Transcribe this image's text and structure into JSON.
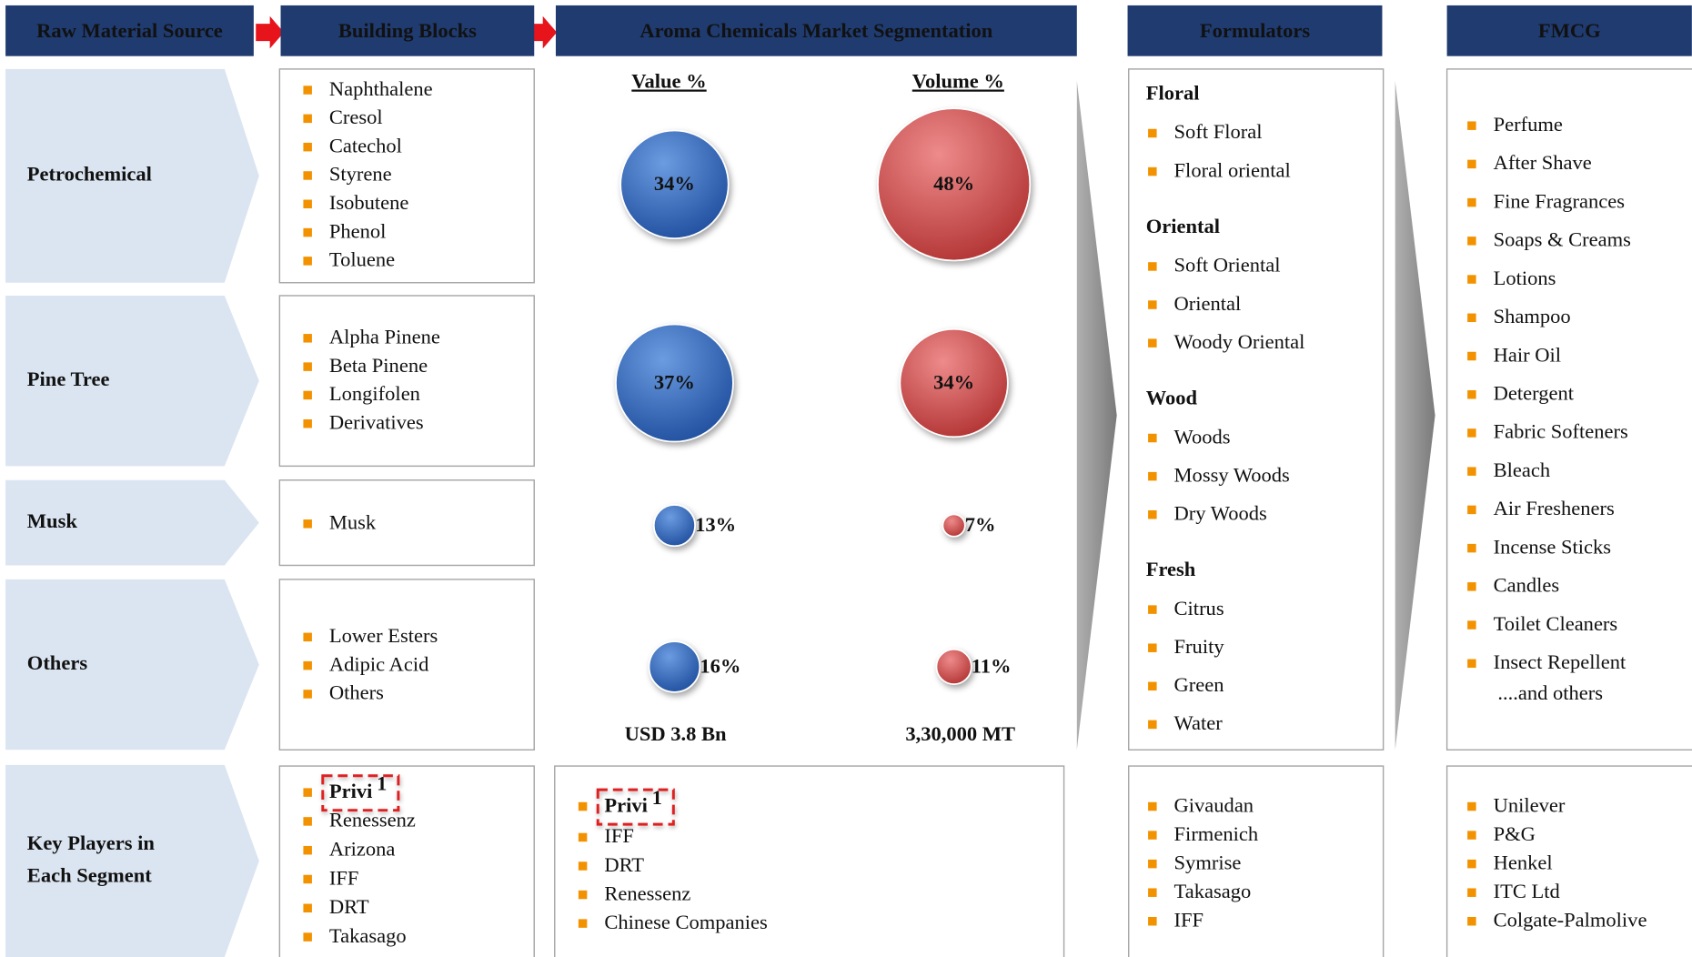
{
  "headers": [
    "Raw Material Source",
    "Building Blocks",
    "Aroma Chemicals Market Segmentation",
    "Formulators",
    "FMCG"
  ],
  "rows": [
    [
      "Petrochemical"
    ],
    [
      "Pine Tree"
    ],
    [
      "Musk"
    ],
    [
      "Others"
    ],
    [
      "Key Players in",
      "Each Segment"
    ]
  ],
  "building_blocks": [
    [
      "Naphthalene",
      "Cresol",
      "Catechol",
      "Styrene",
      "Isobutene",
      "Phenol",
      "Toluene"
    ],
    [
      "Alpha Pinene",
      "Beta Pinene",
      "Longifolen",
      "Derivatives"
    ],
    [
      "Musk"
    ],
    [
      "Lower Esters",
      "Adipic Acid",
      "Others"
    ]
  ],
  "segmentation": {
    "value_title": "Value %",
    "volume_title": "Volume %",
    "value": [
      {
        "value": 34,
        "label": "34%"
      },
      {
        "value": 37,
        "label": "37%"
      },
      {
        "value": 13,
        "label": "13%"
      },
      {
        "value": 16,
        "label": "16%"
      }
    ],
    "volume": [
      {
        "value": 48,
        "label": "48%"
      },
      {
        "value": 34,
        "label": "34%"
      },
      {
        "value": 7,
        "label": "7%"
      },
      {
        "value": 11,
        "label": "11%"
      }
    ],
    "value_total": "USD 3.8 Bn",
    "volume_total": "3,30,000 MT"
  },
  "formulators": [
    {
      "name": "Floral",
      "items": [
        "Soft Floral",
        "Floral oriental"
      ]
    },
    {
      "name": "Oriental",
      "items": [
        "Soft Oriental",
        "Oriental",
        "Woody Oriental"
      ]
    },
    {
      "name": "Wood",
      "items": [
        "Woods",
        "Mossy Woods",
        "Dry Woods"
      ]
    },
    {
      "name": "Fresh",
      "items": [
        "Citrus",
        "Fruity",
        "Green",
        "Water"
      ]
    }
  ],
  "fmcg": {
    "items": [
      "Perfume",
      "After Shave",
      "Fine Fragrances",
      "Soaps & Creams",
      "Lotions",
      "Shampoo",
      "Hair Oil",
      "Detergent",
      "Fabric Softeners",
      "Bleach",
      "Air Fresheners",
      "Incense Sticks",
      "Candles",
      "Toilet Cleaners",
      "Insect Repellent"
    ],
    "more": "....and others"
  },
  "key_players": {
    "building_blocks": [
      "Privi",
      "Renessenz",
      "Arizona",
      "IFF",
      "DRT",
      "Takasago"
    ],
    "aroma": [
      "Privi",
      "IFF",
      "DRT",
      "Renessenz",
      "Chinese Companies"
    ],
    "formulators": [
      "Givaudan",
      "Firmenich",
      "Symrise",
      "Takasago",
      "IFF"
    ],
    "fmcg": [
      "Unilever",
      "P&G",
      "Henkel",
      "ITC Ltd",
      "Colgate-Palmolive"
    ],
    "footnote_mark": "1"
  }
}
